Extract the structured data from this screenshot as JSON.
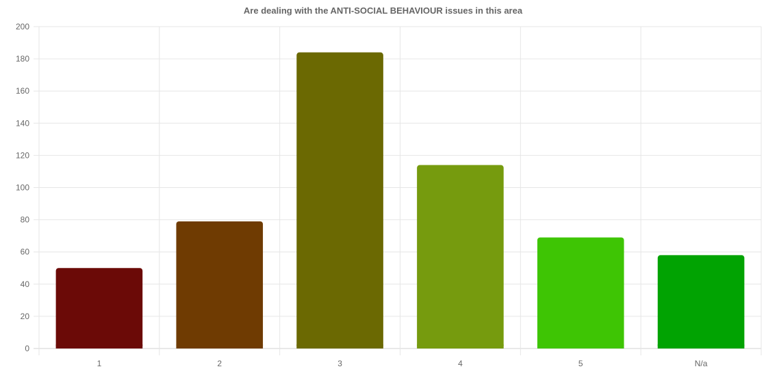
{
  "chart_data": {
    "type": "bar",
    "title": "Are dealing with the ANTI-SOCIAL BEHAVIOUR issues in this area",
    "xlabel": "",
    "ylabel": "",
    "categories": [
      "1",
      "2",
      "3",
      "4",
      "5",
      "N/a"
    ],
    "values": [
      50,
      79,
      184,
      114,
      69,
      58
    ],
    "colors": [
      "#6b0a07",
      "#6f3b02",
      "#6b6902",
      "#769b0e",
      "#3ec504",
      "#01a302"
    ],
    "ylim": [
      0,
      200
    ],
    "yticks": [
      "0",
      "20",
      "40",
      "60",
      "80",
      "100",
      "120",
      "140",
      "160",
      "180",
      "200"
    ],
    "grid": true,
    "legend": "none"
  }
}
